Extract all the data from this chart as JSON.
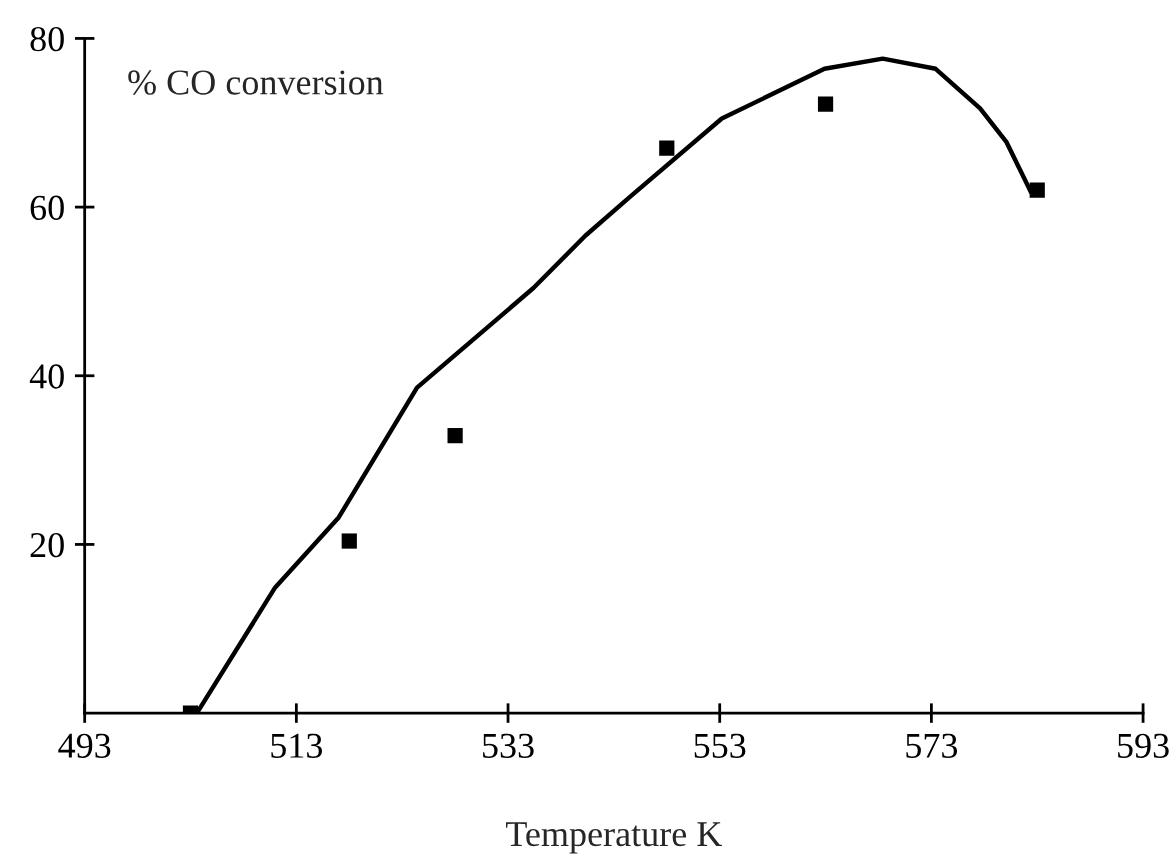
{
  "chart_data": {
    "type": "scatter",
    "xlabel": "Temperature K",
    "annotations": [
      "% CO conversion"
    ],
    "xlim": [
      493,
      593
    ],
    "xticks": [
      493,
      513,
      533,
      553,
      573,
      593
    ],
    "ylim": [
      0,
      80
    ],
    "yticks": [
      20,
      40,
      60,
      80
    ],
    "grid": false,
    "legend": false,
    "series": [
      {
        "marker": "square",
        "color": "#000000",
        "x": [
          503,
          518,
          528,
          548,
          563,
          583
        ],
        "values": [
          0,
          20.4,
          32.9,
          67,
          72.2,
          62
        ]
      },
      {
        "type": "line",
        "marker": "none",
        "line_style": "solid",
        "color": "#000000",
        "x": [
          503.6,
          511,
          517,
          524.4,
          535.4,
          540.3,
          544.6,
          553.2,
          562.9,
          568.4,
          573.4,
          577.6,
          580.1,
          582.4
        ],
        "values": [
          0,
          14.9,
          23.2,
          38.6,
          50.4,
          56.6,
          61.3,
          70.5,
          76.4,
          77.6,
          76.4,
          71.7,
          67.7,
          61.8
        ]
      }
    ]
  }
}
